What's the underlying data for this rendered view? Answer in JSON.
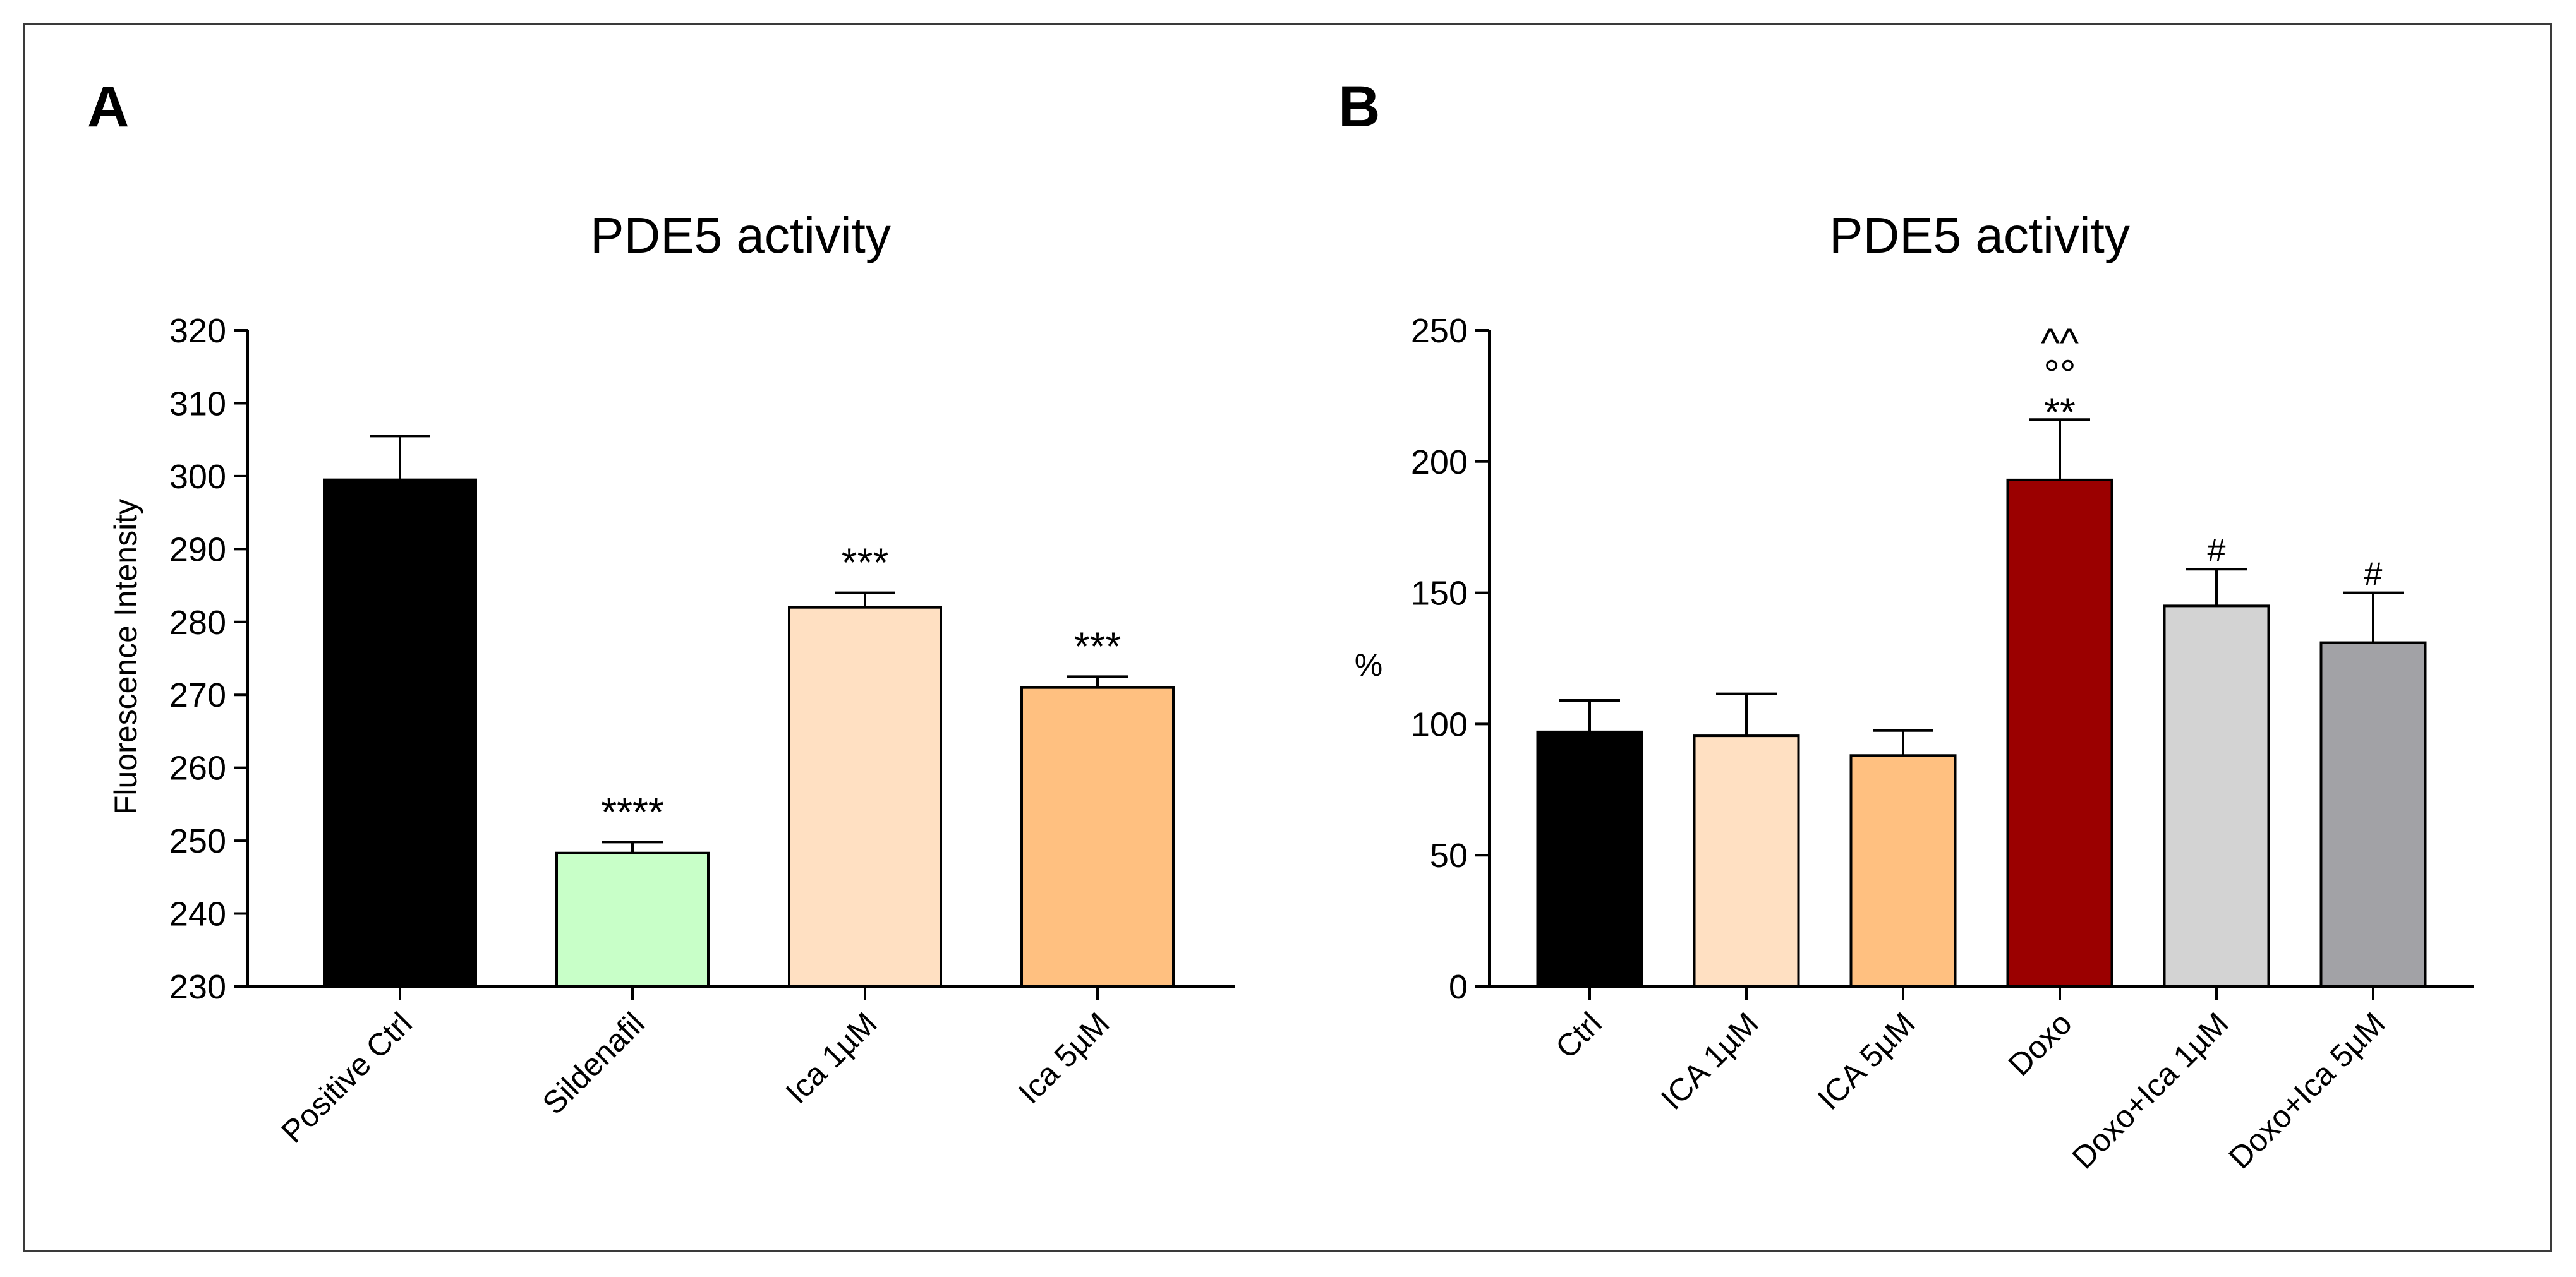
{
  "chart_data": [
    {
      "panel_label": "A",
      "type": "bar",
      "title": "PDE5 activity",
      "xlabel": "",
      "ylabel": "Fluorescence Intensity",
      "ylim": [
        230,
        320
      ],
      "yticks": [
        230,
        240,
        250,
        260,
        270,
        280,
        290,
        300,
        310,
        320
      ],
      "categories": [
        "Positive Ctrl",
        "Sildenafil",
        "Ica 1µM",
        "Ica 5µM"
      ],
      "values": [
        299.5,
        248.3,
        282.0,
        271.0
      ],
      "errors": [
        6.0,
        1.5,
        2.0,
        1.5
      ],
      "colors": [
        "#000000",
        "#c8ffc8",
        "#ffe0c2",
        "#ffc080"
      ],
      "annotations": [
        "",
        "****",
        "***",
        "***"
      ]
    },
    {
      "panel_label": "B",
      "type": "bar",
      "title": "PDE5 activity",
      "xlabel": "",
      "ylabel": "%",
      "ylim": [
        0,
        250
      ],
      "yticks": [
        0,
        50,
        100,
        150,
        200,
        250
      ],
      "categories": [
        "Ctrl",
        "ICA 1µM",
        "ICA 5µM",
        "Doxo",
        "Doxo+Ica 1µM",
        "Doxo+Ica 5µM"
      ],
      "values": [
        97,
        95.5,
        88,
        193,
        145,
        131
      ],
      "errors": [
        12,
        16,
        9.5,
        23,
        14,
        19
      ],
      "colors": [
        "#000000",
        "#ffe0c2",
        "#ffc080",
        "#9b0000",
        "#d3d3d3",
        "#a2a2a6"
      ],
      "annotations": [
        [],
        [],
        [],
        [
          "**",
          "°°",
          "^^"
        ],
        [
          "#"
        ],
        [
          "#"
        ]
      ]
    }
  ]
}
